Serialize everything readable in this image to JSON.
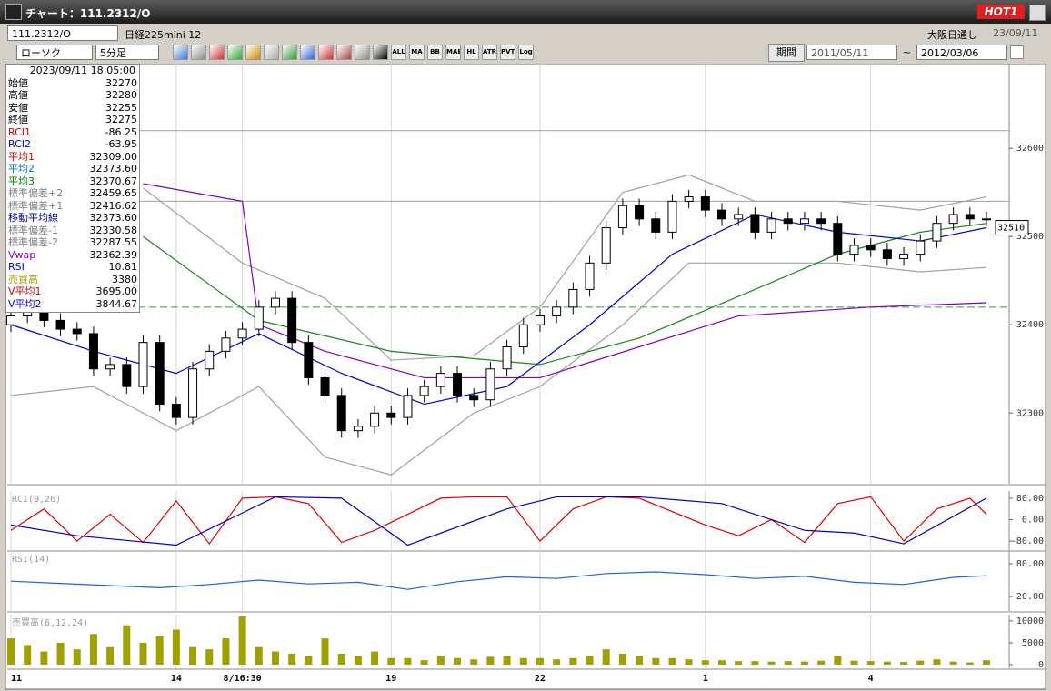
{
  "window": {
    "title": "チャート：111.2312/O",
    "badge": "HOT1"
  },
  "header": {
    "symbol": "111.2312/O",
    "name": "日経225mini 12",
    "market": "大阪日通し",
    "date": "23/09/11"
  },
  "toolbar": {
    "chart_type": "ローソク",
    "interval": "5分足",
    "buttons": [
      "ALL",
      "MA",
      "BB",
      "MAE",
      "HL",
      "ATR",
      "PVT",
      "Log"
    ],
    "period_label": "期間",
    "from": "2011/05/11",
    "sep": "~",
    "to": "2012/03/06"
  },
  "info_panel": {
    "datetime": "2023/09/11  18:05:00",
    "rows": [
      {
        "label": "始値",
        "value": "32270",
        "color": "#000000"
      },
      {
        "label": "高値",
        "value": "32280",
        "color": "#000000"
      },
      {
        "label": "安値",
        "value": "32255",
        "color": "#000000"
      },
      {
        "label": "終値",
        "value": "32275",
        "color": "#000000"
      },
      {
        "label": "RCI1",
        "value": "-86.25",
        "color": "#d00000"
      },
      {
        "label": "RCI2",
        "value": "-63.95",
        "color": "#0000c0"
      },
      {
        "label": "平均1",
        "value": "32309.00",
        "color": "#d00000"
      },
      {
        "label": "平均2",
        "value": "32373.60",
        "color": "#0070c0"
      },
      {
        "label": "平均3",
        "value": "32370.67",
        "color": "#008000"
      },
      {
        "label": "標準偏差+2",
        "value": "32459.65",
        "color": "#808080"
      },
      {
        "label": "標準偏差+1",
        "value": "32416.62",
        "color": "#808080"
      },
      {
        "label": "移動平均線",
        "value": "32373.60",
        "color": "#000080"
      },
      {
        "label": "標準偏差-1",
        "value": "32330.58",
        "color": "#808080"
      },
      {
        "label": "標準偏差-2",
        "value": "32287.55",
        "color": "#808080"
      },
      {
        "label": "Vwap",
        "value": "32362.39",
        "color": "#8000c0"
      },
      {
        "label": "RSI",
        "value": "10.81",
        "color": "#0000ff"
      },
      {
        "label": "売買高",
        "value": "3380",
        "color": "#a0a000"
      },
      {
        "label": "V平均1",
        "value": "3695.00",
        "color": "#d00000"
      },
      {
        "label": "V平均2",
        "value": "3844.67",
        "color": "#0000ff"
      }
    ]
  },
  "chart_data": [
    {
      "type": "candlestick",
      "categories": [
        "11",
        null,
        null,
        null,
        null,
        null,
        null,
        null,
        null,
        null,
        "14",
        null,
        null,
        null,
        "8/16:30",
        null,
        null,
        null,
        null,
        null,
        null,
        null,
        null,
        "19",
        null,
        null,
        null,
        null,
        null,
        null,
        null,
        null,
        "22",
        null,
        null,
        null,
        null,
        null,
        null,
        null,
        null,
        null,
        "1",
        null,
        null,
        null,
        null,
        null,
        null,
        null,
        null,
        null,
        "4",
        null,
        null,
        null,
        null,
        null,
        null,
        null
      ],
      "open": [
        32400,
        32410,
        32420,
        32405,
        32395,
        32390,
        32350,
        32355,
        32330,
        32380,
        32310,
        32295,
        32350,
        32370,
        32385,
        32395,
        32420,
        32430,
        32380,
        32340,
        32320,
        32280,
        32285,
        32300,
        32295,
        32320,
        32330,
        32345,
        32320,
        32315,
        32350,
        32375,
        32400,
        32410,
        32420,
        32440,
        32470,
        32510,
        32535,
        32520,
        32505,
        32540,
        32545,
        32530,
        32520,
        32525,
        32505,
        32520,
        32515,
        32520,
        32515,
        32480,
        32490,
        32485,
        32475,
        32480,
        32495,
        32515,
        32525,
        32520
      ],
      "high": [
        32418,
        32428,
        32428,
        32413,
        32403,
        32398,
        32363,
        32363,
        32388,
        32388,
        32318,
        32358,
        32378,
        32393,
        32403,
        32428,
        32438,
        32438,
        32388,
        32348,
        32328,
        32293,
        32308,
        32308,
        32328,
        32338,
        32353,
        32353,
        32328,
        32358,
        32383,
        32408,
        32418,
        32428,
        32448,
        32478,
        32518,
        32543,
        32543,
        32528,
        32548,
        32553,
        32553,
        32538,
        32533,
        32533,
        32528,
        32528,
        32528,
        32528,
        32523,
        32498,
        32498,
        32493,
        32488,
        32503,
        32523,
        32533,
        32533,
        32528
      ],
      "low": [
        32392,
        32402,
        32397,
        32387,
        32382,
        32342,
        32342,
        32322,
        32322,
        32302,
        32287,
        32287,
        32342,
        32362,
        32377,
        32387,
        32412,
        32372,
        32332,
        32312,
        32272,
        32272,
        32277,
        32287,
        32287,
        32312,
        32322,
        32312,
        32307,
        32307,
        32342,
        32367,
        32392,
        32402,
        32412,
        32432,
        32462,
        32502,
        32512,
        32497,
        32497,
        32532,
        32522,
        32512,
        32512,
        32497,
        32497,
        32507,
        32507,
        32507,
        32472,
        32472,
        32477,
        32467,
        32467,
        32472,
        32487,
        32507,
        32512,
        32512
      ],
      "close": [
        32410,
        32420,
        32405,
        32395,
        32390,
        32350,
        32355,
        32330,
        32380,
        32310,
        32295,
        32350,
        32370,
        32385,
        32395,
        32420,
        32430,
        32380,
        32340,
        32320,
        32280,
        32285,
        32300,
        32295,
        32320,
        32330,
        32345,
        32320,
        32315,
        32350,
        32375,
        32400,
        32410,
        32420,
        32440,
        32470,
        32510,
        32535,
        32520,
        32505,
        32540,
        32545,
        32530,
        32520,
        32525,
        32505,
        32520,
        32515,
        32520,
        32515,
        32480,
        32490,
        32485,
        32475,
        32480,
        32495,
        32515,
        32525,
        32520,
        32520
      ],
      "up_color": "#ffffff",
      "down_color": "#000000",
      "xlim": [
        0,
        59
      ],
      "ylim": [
        32224,
        32694
      ],
      "yticks": [
        32300,
        32400,
        32500,
        32600
      ],
      "last_price": 32510,
      "hlines": [
        {
          "value": 32620,
          "color": "#a0a0a0",
          "dashed": false
        },
        {
          "value": 32540,
          "color": "#a0a0a0",
          "dashed": false
        },
        {
          "value": 32420,
          "color": "#30a030",
          "dashed": true
        }
      ],
      "overlays": [
        {
          "color": "#a0a0a0",
          "x": [
            8,
            14,
            19,
            23,
            28,
            32,
            37,
            41,
            45,
            50,
            55,
            59
          ],
          "values": [
            32555,
            32470,
            32430,
            32360,
            32365,
            32420,
            32550,
            32570,
            32540,
            32540,
            32530,
            32545
          ]
        },
        {
          "color": "#a0a0a0",
          "x": [
            0,
            5,
            10,
            15,
            19,
            23,
            28,
            32,
            37,
            41,
            45,
            50,
            55,
            59
          ],
          "values": [
            32320,
            32330,
            32280,
            32330,
            32250,
            32230,
            32300,
            32330,
            32400,
            32470,
            32470,
            32470,
            32460,
            32465
          ]
        },
        {
          "color": "#8000c0",
          "x": [
            8,
            14,
            15,
            19,
            25,
            32,
            38,
            44,
            52,
            59
          ],
          "values": [
            32560,
            32540,
            32400,
            32370,
            32340,
            32340,
            32375,
            32410,
            32420,
            32425
          ]
        },
        {
          "color": "#208020",
          "x": [
            8,
            15,
            23,
            32,
            38,
            45,
            50,
            55,
            59
          ],
          "values": [
            32500,
            32405,
            32370,
            32355,
            32385,
            32440,
            32480,
            32505,
            32515
          ]
        },
        {
          "color": "#0000d0",
          "x": [
            0,
            5,
            10,
            15,
            20,
            25,
            30,
            35,
            40,
            45,
            50,
            55,
            59
          ],
          "values": [
            32400,
            32370,
            32345,
            32390,
            32345,
            32310,
            32330,
            32400,
            32480,
            32525,
            32505,
            32495,
            32510
          ]
        }
      ]
    },
    {
      "type": "line",
      "label": "RCI(9,26)",
      "xlim": [
        0,
        59
      ],
      "ylim": [
        -100,
        100
      ],
      "yticks": [
        {
          "value": 80,
          "label": "80.00"
        },
        {
          "value": 0,
          "label": "0.00"
        },
        {
          "value": -80,
          "label": "-80.00"
        }
      ],
      "series": [
        {
          "color": "#e00000",
          "x": [
            0,
            2,
            4,
            6,
            8,
            10,
            12,
            14,
            16,
            18,
            20,
            22,
            24,
            26,
            28,
            30,
            32,
            34,
            36,
            38,
            40,
            42,
            44,
            46,
            48,
            50,
            52,
            54,
            56,
            58,
            59
          ],
          "values": [
            -40,
            40,
            -80,
            20,
            -85,
            70,
            -90,
            80,
            85,
            60,
            -85,
            -40,
            20,
            80,
            85,
            85,
            -80,
            40,
            85,
            80,
            30,
            -20,
            -60,
            0,
            -85,
            60,
            85,
            -80,
            40,
            80,
            20
          ]
        },
        {
          "color": "#0000c0",
          "x": [
            0,
            4,
            10,
            16,
            20,
            24,
            30,
            33,
            38,
            43,
            48,
            51,
            54,
            59
          ],
          "values": [
            -20,
            -60,
            -95,
            85,
            80,
            -95,
            40,
            85,
            85,
            60,
            -40,
            -50,
            -90,
            80
          ]
        }
      ]
    },
    {
      "type": "line",
      "label": "RSI(14)",
      "xlim": [
        0,
        59
      ],
      "ylim": [
        0,
        100
      ],
      "yticks": [
        {
          "value": 80,
          "label": "80.00"
        },
        {
          "value": 20,
          "label": "20.00"
        }
      ],
      "series": [
        {
          "color": "#2060e0",
          "x": [
            0,
            3,
            6,
            9,
            12,
            15,
            18,
            21,
            24,
            27,
            30,
            33,
            36,
            39,
            42,
            45,
            48,
            51,
            54,
            57,
            59
          ],
          "values": [
            48,
            44,
            40,
            36,
            42,
            50,
            43,
            46,
            33,
            47,
            56,
            53,
            62,
            65,
            60,
            53,
            57,
            46,
            42,
            55,
            58
          ]
        }
      ]
    },
    {
      "type": "bar",
      "label": "売買高(6,12,24)",
      "xlim": [
        0,
        59
      ],
      "ylim": [
        0,
        11000
      ],
      "yticks": [
        0,
        5000,
        10000
      ],
      "color": "#a0a000",
      "values": [
        6000,
        4500,
        3000,
        5000,
        3500,
        7000,
        4000,
        9000,
        5000,
        6500,
        8000,
        4000,
        3500,
        6000,
        11000,
        4000,
        3000,
        2500,
        2000,
        6000,
        2500,
        2000,
        3000,
        1500,
        1500,
        1000,
        2000,
        1500,
        1200,
        1800,
        2000,
        1500,
        1500,
        1200,
        1500,
        2000,
        3500,
        2500,
        2000,
        1500,
        1500,
        1200,
        1000,
        1000,
        800,
        800,
        700,
        800,
        700,
        900,
        2000,
        900,
        800,
        700,
        600,
        900,
        1200,
        700,
        500,
        1000
      ]
    }
  ]
}
